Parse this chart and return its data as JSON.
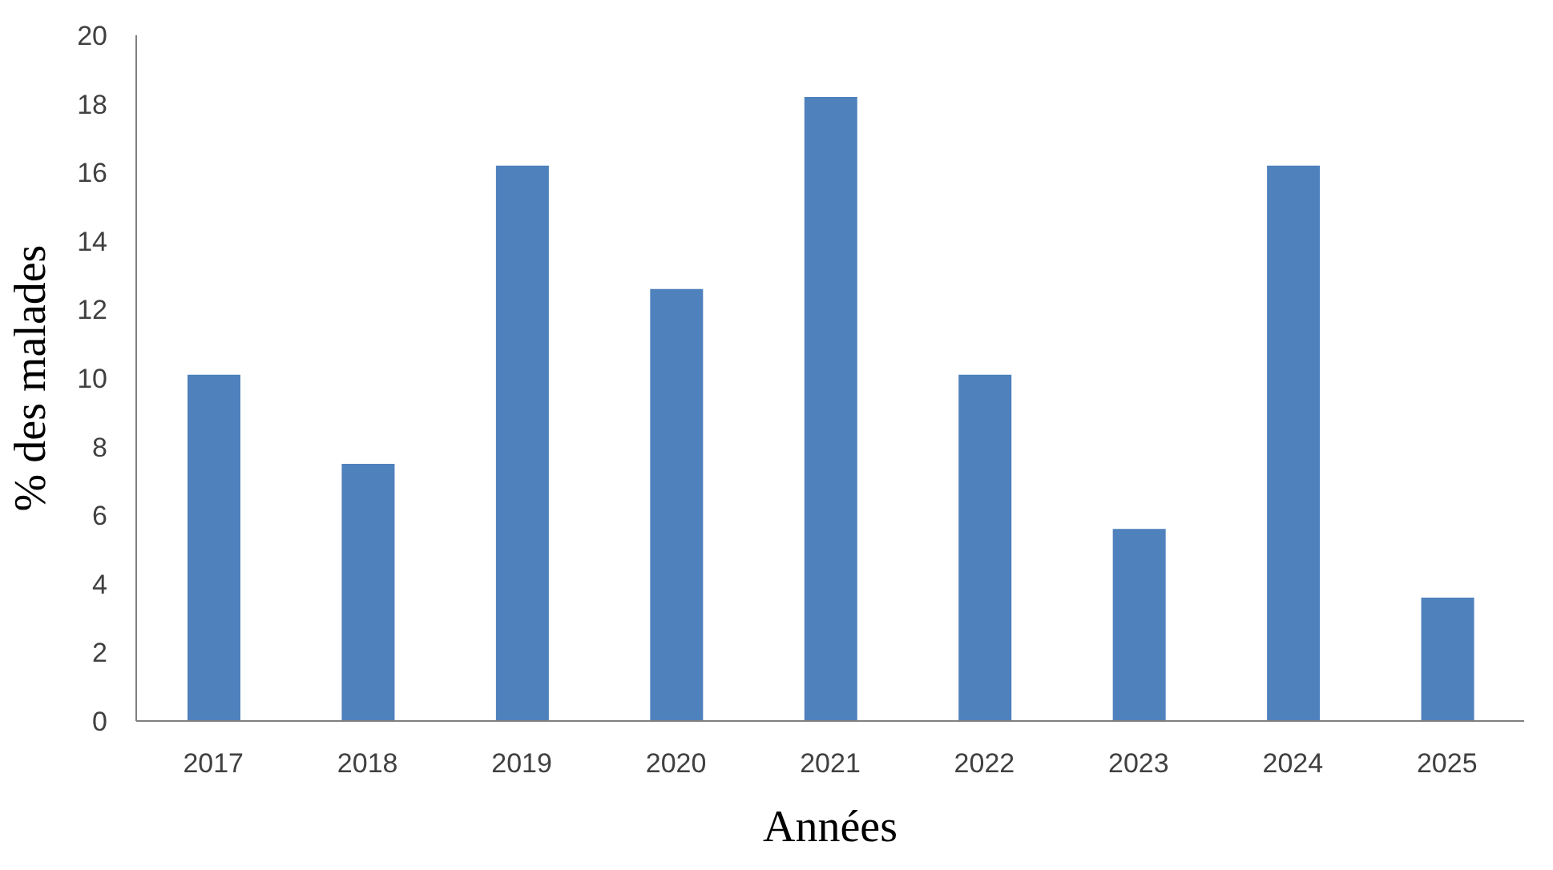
{
  "chart_data": {
    "type": "bar",
    "xlabel": "Années",
    "ylabel": "% des malades",
    "categories": [
      "2017",
      "2018",
      "2019",
      "2020",
      "2021",
      "2022",
      "2023",
      "2024",
      "2025"
    ],
    "values": [
      10.1,
      7.5,
      16.2,
      12.6,
      18.2,
      10.1,
      5.6,
      16.2,
      3.6
    ],
    "color": "#4f81bd",
    "ylim": [
      0,
      20
    ],
    "yticks": [
      0,
      2,
      4,
      6,
      8,
      10,
      12,
      14,
      16,
      18,
      20
    ],
    "grid": false,
    "legend": false
  }
}
